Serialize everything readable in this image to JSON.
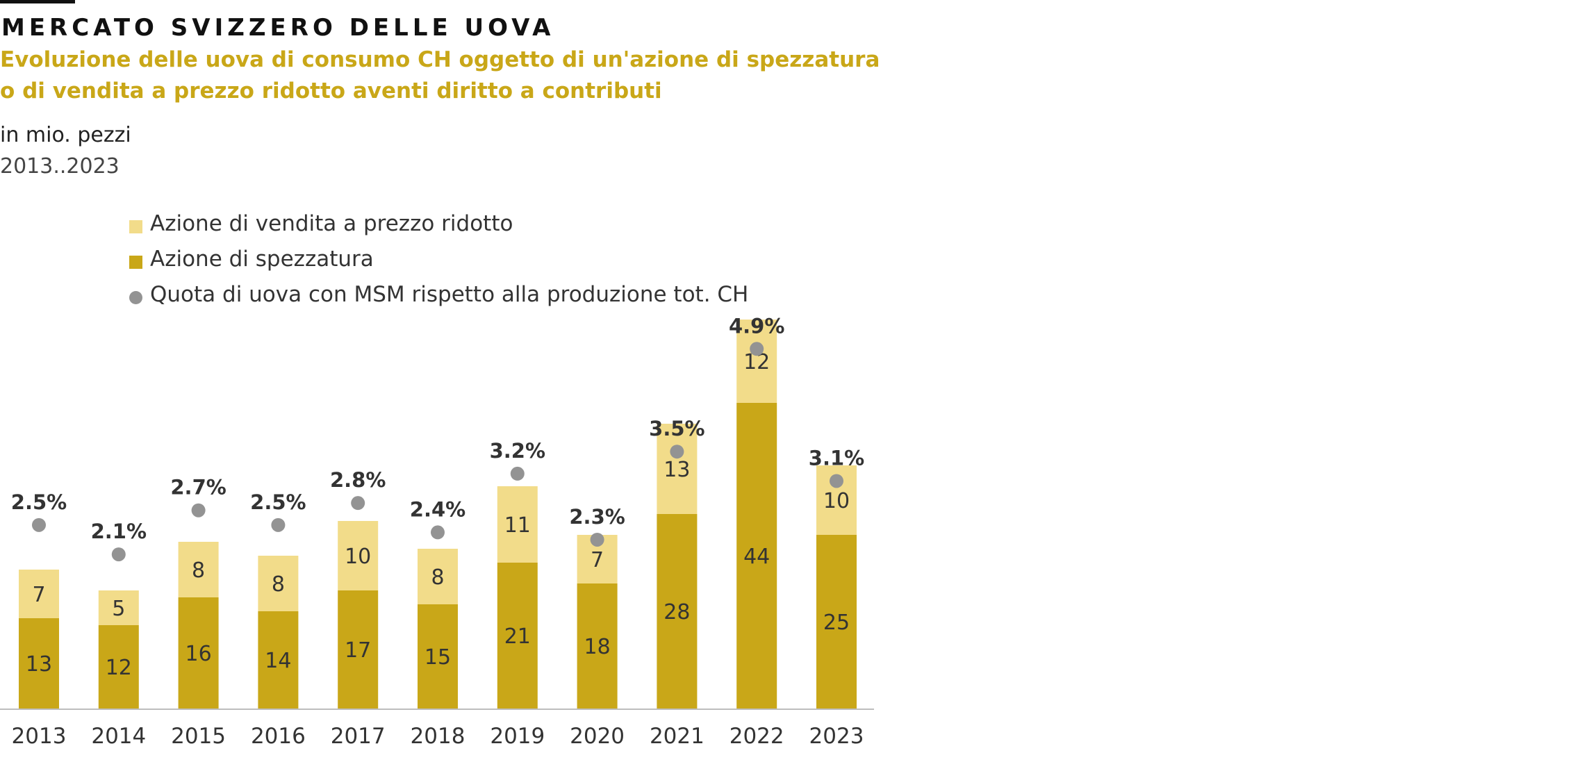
{
  "header": {
    "kicker": "MERCATO SVIZZERO DELLE UOVA",
    "title": "Evoluzione delle uova di consumo CH oggetto di un'azione di spezzatura o di vendita a prezzo ridotto aventi diritto a contributi",
    "unit": "in mio. pezzi",
    "range": "2013..2023"
  },
  "legend": [
    {
      "label": "Azione di vendita a prezzo ridotto",
      "color": "#f2dc8a",
      "marker": "square"
    },
    {
      "label": "Azione di spezzatura",
      "color": "#c9a718",
      "marker": "square"
    },
    {
      "label": "Quota di uova con MSM rispetto alla produzione tot. CH",
      "color": "#939393",
      "marker": "circle"
    }
  ],
  "colors": {
    "accent": "#c9a718",
    "light": "#f2dc8a",
    "dot": "#939393",
    "axis": "#bdbdbd",
    "text": "#333333"
  },
  "chart_data": {
    "type": "bar",
    "stacked": true,
    "categories": [
      "2013",
      "2014",
      "2015",
      "2016",
      "2017",
      "2018",
      "2019",
      "2020",
      "2021",
      "2022",
      "2023"
    ],
    "series": [
      {
        "name": "Azione di spezzatura",
        "values": [
          13,
          12,
          16,
          14,
          17,
          15,
          21,
          18,
          28,
          44,
          25
        ]
      },
      {
        "name": "Azione di vendita a prezzo ridotto",
        "values": [
          7,
          5,
          8,
          8,
          10,
          8,
          11,
          7,
          13,
          12,
          10
        ]
      }
    ],
    "share_series": {
      "name": "Quota di uova con MSM rispetto alla produzione tot. CH",
      "values": [
        2.5,
        2.1,
        2.7,
        2.5,
        2.8,
        2.4,
        3.2,
        2.3,
        3.5,
        4.9,
        3.1
      ],
      "labels": [
        "2.5%",
        "2.1%",
        "2.7%",
        "2.5%",
        "2.8%",
        "2.4%",
        "3.2%",
        "2.3%",
        "3.5%",
        "4.9%",
        "3.1%"
      ],
      "ylim": [
        0,
        5.3
      ]
    },
    "ylim": [
      0,
      56
    ],
    "ylabel": "in mio. pezzi",
    "grid": false,
    "legend_position": "top-left"
  }
}
